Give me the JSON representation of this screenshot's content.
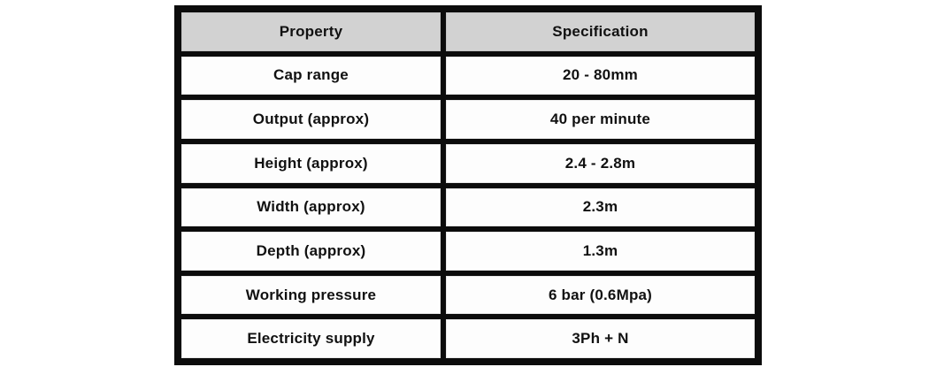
{
  "chart_data": {
    "type": "table",
    "title": "",
    "columns": [
      "Property",
      "Specification"
    ],
    "rows": [
      [
        "Cap range",
        "20 - 80mm"
      ],
      [
        "Output (approx)",
        "40 per minute"
      ],
      [
        "Height (approx)",
        "2.4 - 2.8m"
      ],
      [
        "Width (approx)",
        "2.3m"
      ],
      [
        "Depth (approx)",
        "1.3m"
      ],
      [
        "Working pressure",
        "6 bar (0.6Mpa)"
      ],
      [
        "Electricity supply",
        "3Ph + N"
      ]
    ],
    "layout": {
      "header_row": true,
      "grid": "on"
    }
  },
  "colors": {
    "header_bg": "#d2d2d2",
    "border": "#0c0c0c",
    "cell_bg": "#fdfdfd",
    "text": "#111111",
    "page_bg": "#ffffff"
  }
}
